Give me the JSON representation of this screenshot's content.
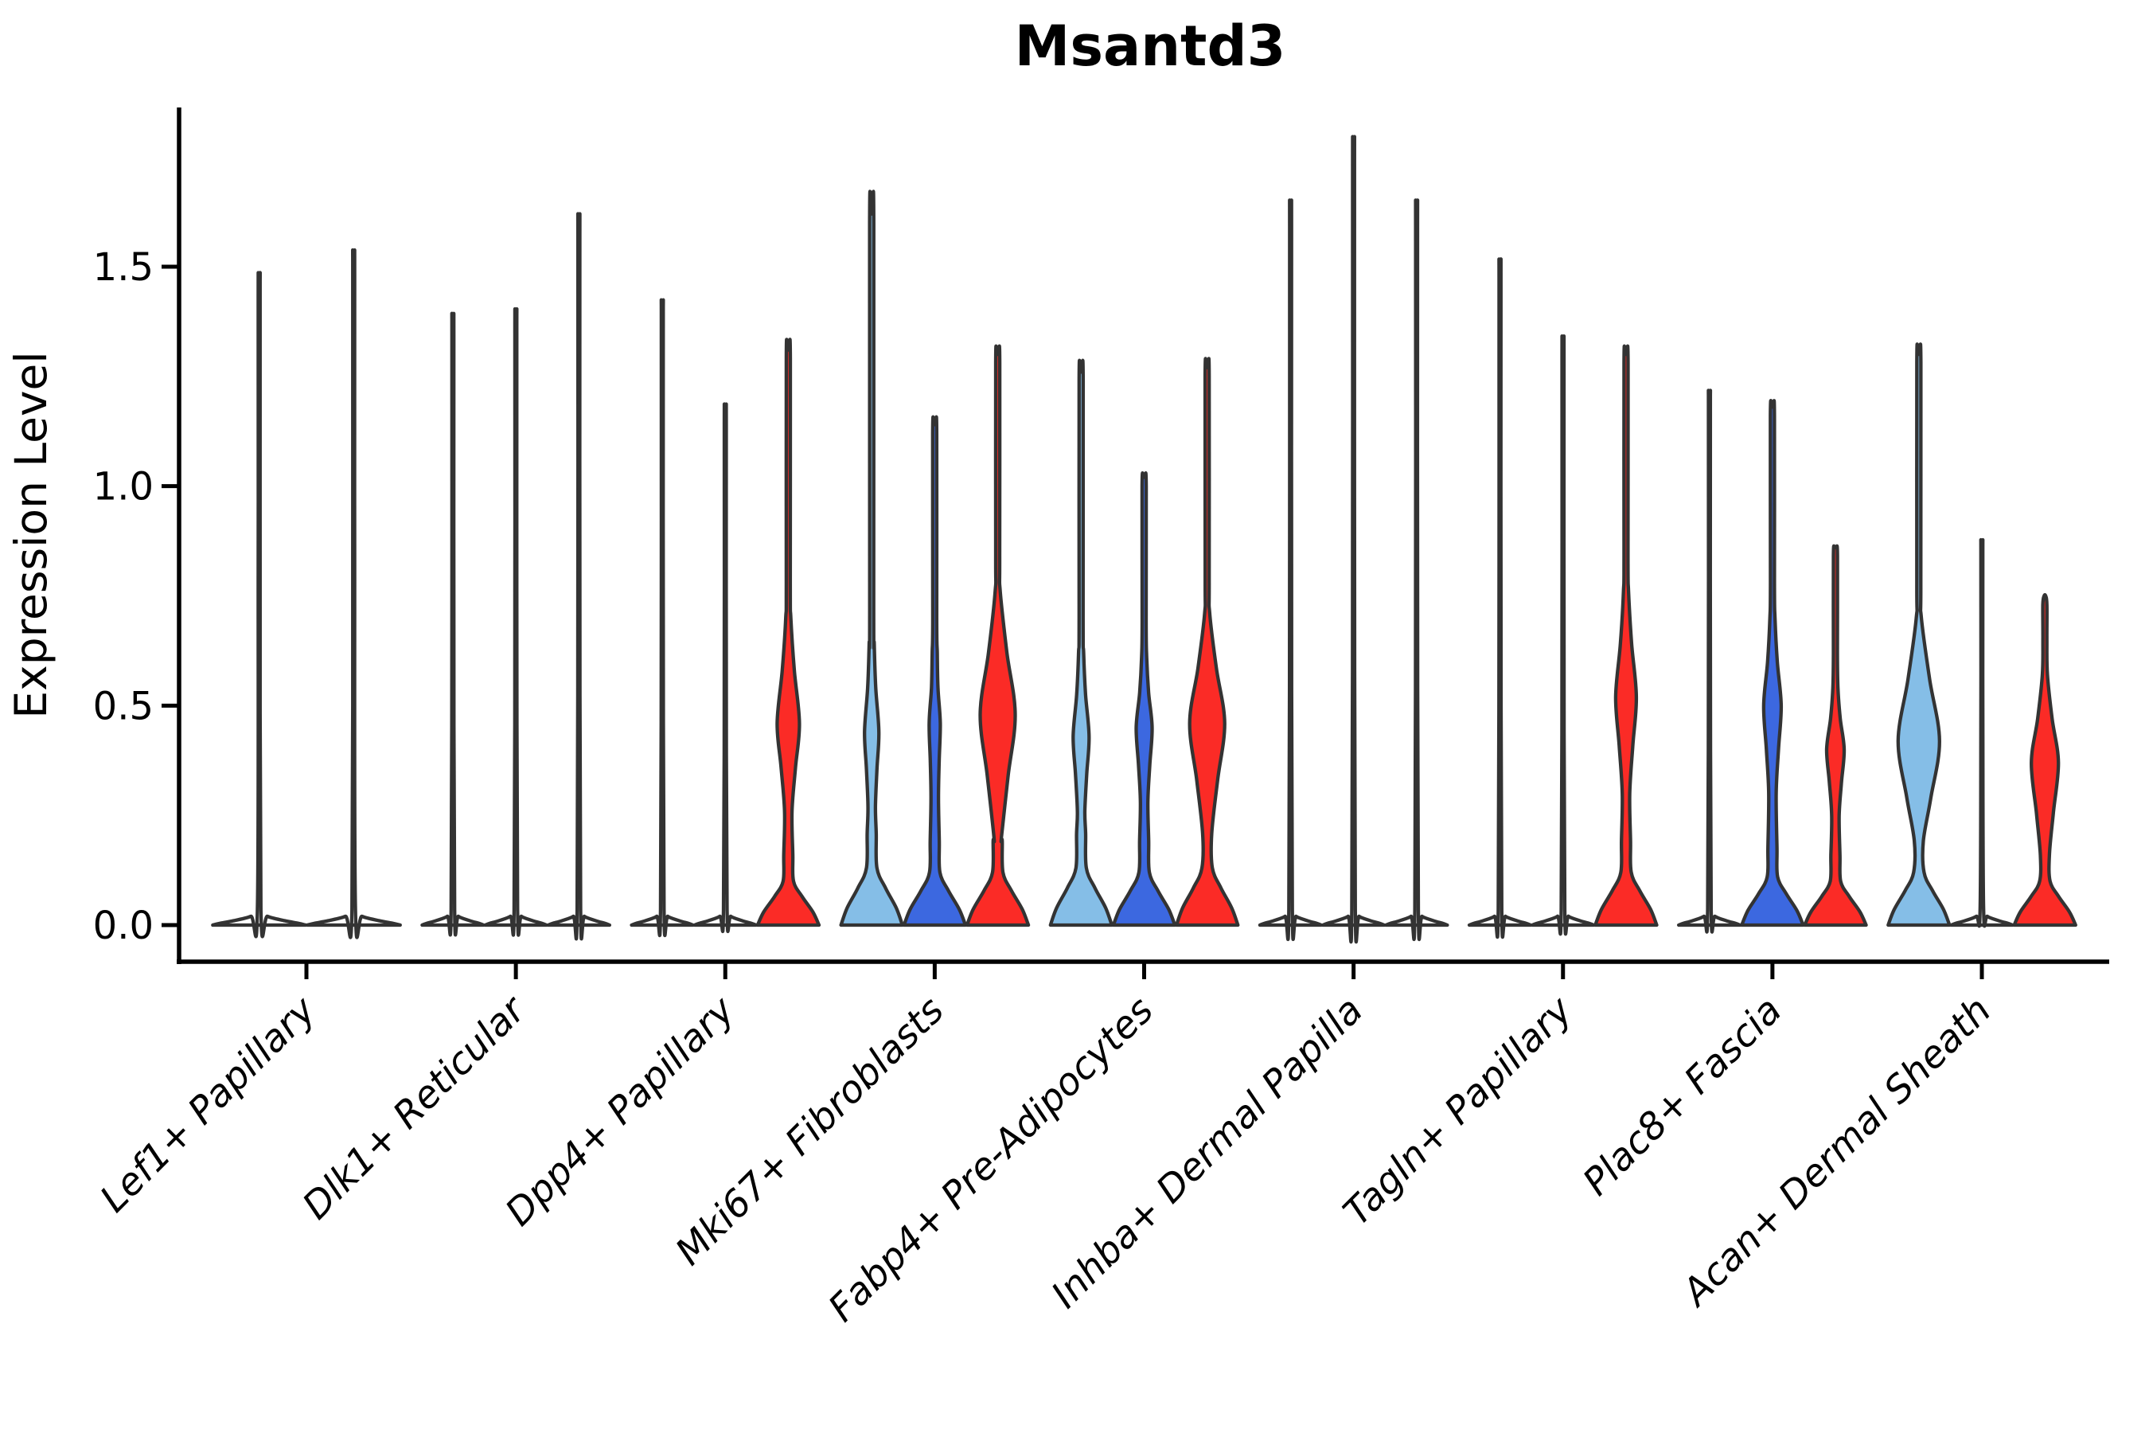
{
  "chart_data": {
    "type": "violin",
    "title": "Msantd3",
    "ylabel": "Expression Level",
    "xlabel": "",
    "ytick_labels": [
      "0.0",
      "0.5",
      "1.0",
      "1.5"
    ],
    "ytick_values": [
      0.0,
      0.5,
      1.0,
      1.5
    ],
    "ylim": [
      -0.085,
      1.86
    ],
    "grid": "off",
    "legend": "none",
    "colors": {
      "skyblue": "#85BEE7",
      "blue": "#3C68E0",
      "red": "#FB2B26",
      "plain": "#FFFFFF",
      "outline": "#333333",
      "axis": "#000000"
    },
    "categories": [
      "Lef1+ Papillary",
      "Dlk1+ Reticular",
      "Dpp4+ Papillary",
      "Mki67+ Fibroblasts",
      "Fabp4+ Pre-Adipocytes",
      "Inhba+ Dermal Papilla",
      "Tagln+ Papillary",
      "Plac8+ Fascia",
      "Acan+ Dermal Sheath"
    ],
    "groups": [
      {
        "category": "Lef1+ Papillary",
        "violins": [
          {
            "color": "plain",
            "max": 1.46
          },
          {
            "color": "plain",
            "max": 1.51
          }
        ]
      },
      {
        "category": "Dlk1+ Reticular",
        "violins": [
          {
            "color": "plain",
            "max": 1.37
          },
          {
            "color": "plain",
            "max": 1.38
          },
          {
            "color": "plain",
            "max": 1.59
          }
        ]
      },
      {
        "category": "Dpp4+ Papillary",
        "violins": [
          {
            "color": "plain",
            "max": 1.4
          },
          {
            "color": "plain",
            "max": 1.17
          },
          {
            "color": "red",
            "max": 1.31,
            "fh": 0.1,
            "bulge": {
              "lo": 0.26,
              "mid": 0.46,
              "hi": 0.7,
              "hw": 14
            }
          }
        ]
      },
      {
        "category": "Mki67+ Fibroblasts",
        "violins": [
          {
            "color": "skyblue",
            "max": 1.62,
            "fh": 0.13,
            "bulge": {
              "lo": 0.27,
              "mid": 0.44,
              "hi": 0.64,
              "hw": 9
            }
          },
          {
            "color": "blue",
            "max": 1.14,
            "fh": 0.12,
            "bulge": {
              "lo": 0.29,
              "mid": 0.46,
              "hi": 0.62,
              "hw": 7
            }
          },
          {
            "color": "red",
            "max": 1.3,
            "fh": 0.12,
            "bulge": {
              "lo": 0.2,
              "mid": 0.48,
              "hi": 0.76,
              "hw": 22
            }
          }
        ]
      },
      {
        "category": "Fabp4+ Pre-Adipocytes",
        "violins": [
          {
            "color": "skyblue",
            "max": 1.26,
            "fh": 0.13,
            "bulge": {
              "lo": 0.26,
              "mid": 0.43,
              "hi": 0.62,
              "hw": 10
            }
          },
          {
            "color": "blue",
            "max": 1.02,
            "fh": 0.12,
            "bulge": {
              "lo": 0.28,
              "mid": 0.45,
              "hi": 0.61,
              "hw": 10
            }
          },
          {
            "color": "red",
            "max": 1.27,
            "fh": 0.13,
            "bulge": {
              "lo": 0.2,
              "mid": 0.46,
              "hi": 0.71,
              "hw": 22
            }
          }
        ]
      },
      {
        "category": "Inhba+ Dermal Papilla",
        "violins": [
          {
            "color": "plain",
            "max": 1.62
          },
          {
            "color": "plain",
            "max": 1.76
          },
          {
            "color": "plain",
            "max": 1.62
          }
        ]
      },
      {
        "category": "Tagln+ Papillary",
        "violins": [
          {
            "color": "plain",
            "max": 1.49
          },
          {
            "color": "plain",
            "max": 1.32
          },
          {
            "color": "red",
            "max": 1.3,
            "fh": 0.12,
            "bulge": {
              "lo": 0.3,
              "mid": 0.52,
              "hi": 0.76,
              "hw": 13
            }
          }
        ]
      },
      {
        "category": "Plac8+ Fascia",
        "violins": [
          {
            "color": "plain",
            "max": 1.2
          },
          {
            "color": "blue",
            "max": 1.18,
            "fh": 0.11,
            "bulge": {
              "lo": 0.3,
              "mid": 0.5,
              "hi": 0.7,
              "hw": 11
            }
          },
          {
            "color": "red",
            "max": 0.86,
            "fh": 0.1,
            "bulge": {
              "lo": 0.25,
              "mid": 0.4,
              "hi": 0.54,
              "hw": 11
            }
          }
        ]
      },
      {
        "category": "Acan+ Dermal Sheath",
        "violins": [
          {
            "color": "skyblue",
            "max": 1.3,
            "fh": 0.12,
            "bulge": {
              "lo": 0.16,
              "mid": 0.42,
              "hi": 0.7,
              "hw": 26
            }
          },
          {
            "color": "plain",
            "max": 0.87
          },
          {
            "color": "red",
            "max": 0.75,
            "fh": 0.1,
            "bulge": {
              "lo": 0.14,
              "mid": 0.37,
              "hi": 0.57,
              "hw": 17
            }
          }
        ]
      }
    ]
  }
}
